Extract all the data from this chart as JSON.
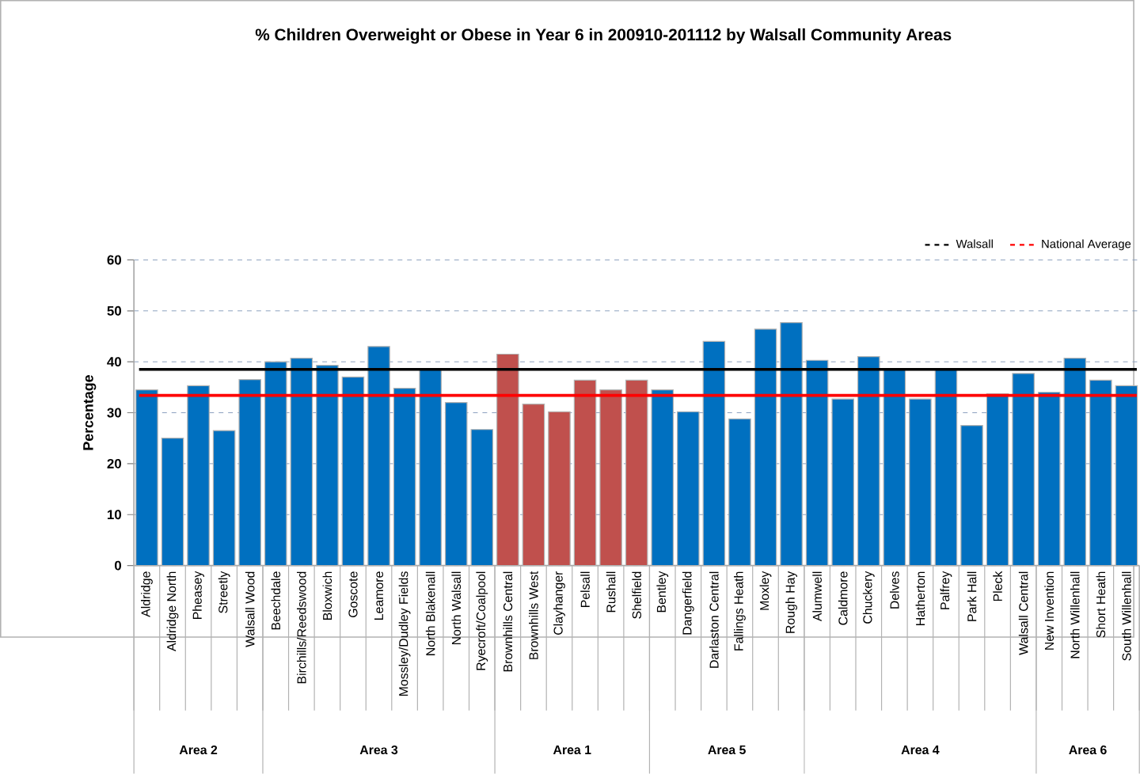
{
  "chart_data": {
    "type": "bar",
    "title": "% Children Overweight or Obese in Year 6 in 200910-201112 by Walsall Community Areas",
    "ylabel": "Percentage",
    "categories": [
      "Aldridge",
      "Aldridge North",
      "Pheasey",
      "Streetly",
      "Walsall Wood",
      "Beechdale",
      "Birchills/Reedswood",
      "Bloxwich",
      "Goscote",
      "Leamore",
      "Mossley/Dudley Fields",
      "North Blakenall",
      "North Walsall",
      "Ryecroft/Coalpool",
      "Brownhills Central",
      "Brownhills West",
      "Clayhanger",
      "Pelsall",
      "Rushall",
      "Shelfield",
      "Bentley",
      "Dangerfield",
      "Darlaston Central",
      "Fallings Heath",
      "Moxley",
      "Rough Hay",
      "Alumwell",
      "Caldmore",
      "Chuckery",
      "Delves",
      "Hatherton",
      "Palfrey",
      "Park Hall",
      "Pleck",
      "Walsall Central",
      "New Invention",
      "North Willenhall",
      "Short Heath",
      "South Willenhall"
    ],
    "values": [
      34.5,
      25,
      35.3,
      26.5,
      36.5,
      40,
      40.7,
      39.3,
      37,
      43,
      34.8,
      38.5,
      32,
      26.7,
      41.5,
      31.7,
      30.2,
      36.4,
      34.5,
      36.4,
      34.5,
      30.2,
      44,
      28.8,
      46.4,
      47.7,
      40.3,
      32.7,
      41,
      38.5,
      32.7,
      38.7,
      27.5,
      33.7,
      37.7,
      34,
      40.7,
      36.4,
      35.3
    ],
    "colors": [
      "#0070c0",
      "#0070c0",
      "#0070c0",
      "#0070c0",
      "#0070c0",
      "#0070c0",
      "#0070c0",
      "#0070c0",
      "#0070c0",
      "#0070c0",
      "#0070c0",
      "#0070c0",
      "#0070c0",
      "#0070c0",
      "#c0504d",
      "#c0504d",
      "#c0504d",
      "#c0504d",
      "#c0504d",
      "#c0504d",
      "#0070c0",
      "#0070c0",
      "#0070c0",
      "#0070c0",
      "#0070c0",
      "#0070c0",
      "#0070c0",
      "#0070c0",
      "#0070c0",
      "#0070c0",
      "#0070c0",
      "#0070c0",
      "#0070c0",
      "#0070c0",
      "#0070c0",
      "#0070c0",
      "#0070c0",
      "#0070c0",
      "#0070c0"
    ],
    "ylim": [
      0,
      60
    ],
    "yticks": [
      0,
      10,
      20,
      30,
      40,
      50,
      60
    ],
    "grid": "y",
    "legend": "top right",
    "ref_lines": [
      {
        "axis": "y",
        "value": 38.5,
        "label": "Walsall",
        "color": "#000000",
        "line_style": "solid"
      },
      {
        "axis": "y",
        "value": 33.4,
        "label": "National Average",
        "color": "#ff0000",
        "line_style": "solid"
      }
    ],
    "annotations": [
      "Area 2",
      "Area 3",
      "Area 1",
      "Area 5",
      "Area 4",
      "Area 6"
    ]
  }
}
